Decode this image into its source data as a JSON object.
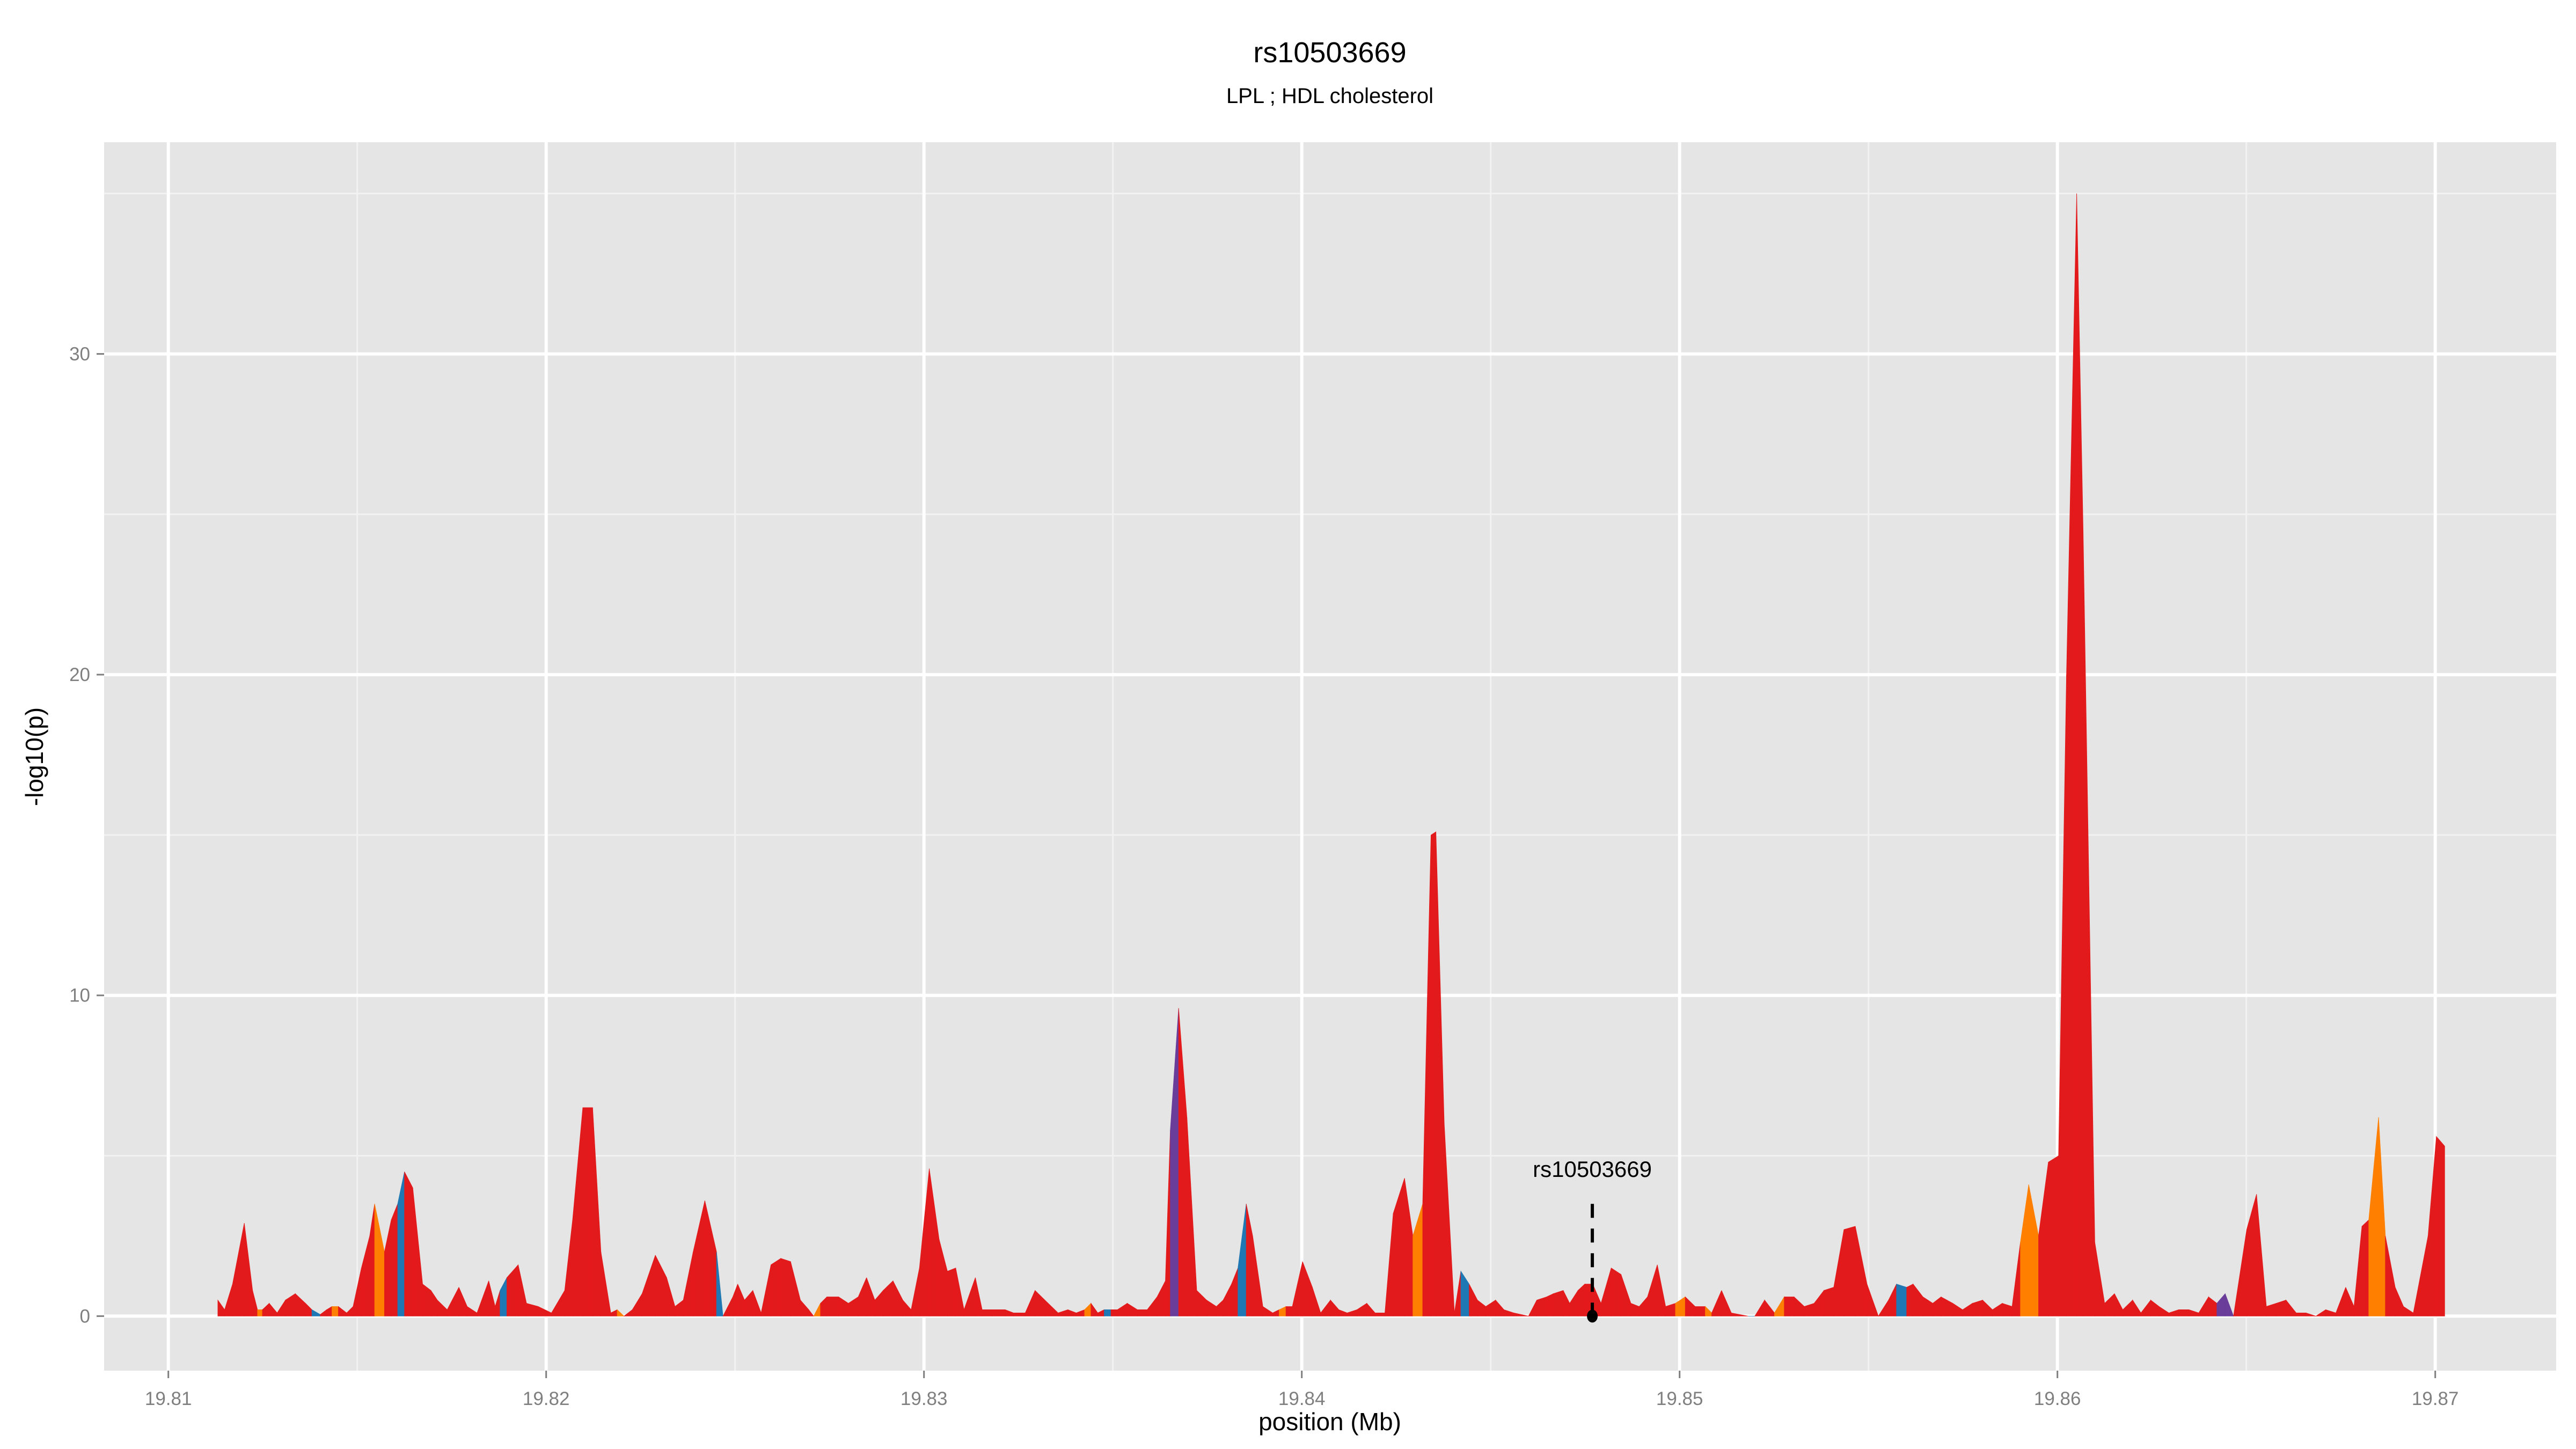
{
  "chart_data": {
    "type": "area",
    "title": "rs10503669",
    "subtitle": "LPL ; HDL cholesterol",
    "xlabel": "position (Mb)",
    "ylabel": "-log10(p)",
    "xlim": [
      19.8083,
      19.8732
    ],
    "ylim": [
      -1.7,
      36.6
    ],
    "x_ticks": [
      19.81,
      19.82,
      19.83,
      19.84,
      19.85,
      19.86,
      19.87
    ],
    "x_tick_labels": [
      "19.81",
      "19.82",
      "19.83",
      "19.84",
      "19.85",
      "19.86",
      "19.87"
    ],
    "y_ticks": [
      0,
      10,
      20,
      30
    ],
    "y_tick_labels": [
      "0",
      "10",
      "20",
      "30"
    ],
    "grid": true,
    "legend": "none",
    "colors": {
      "r": "#E31A1C",
      "o": "#FF7F00",
      "b": "#1F78B4",
      "p": "#6A3D9A"
    },
    "highlight": {
      "label": "rs10503669",
      "x": 19.84769,
      "y": 0,
      "line_top": 3.5
    },
    "points": [
      [
        19.81131,
        0.5,
        "r"
      ],
      [
        19.81149,
        0.2,
        "r"
      ],
      [
        19.8117,
        1.0,
        "r"
      ],
      [
        19.81201,
        2.9,
        "r"
      ],
      [
        19.81223,
        0.8,
        "r"
      ],
      [
        19.81236,
        0.2,
        "o"
      ],
      [
        19.81249,
        0.2,
        "r"
      ],
      [
        19.81267,
        0.4,
        "r"
      ],
      [
        19.81288,
        0.1,
        "r"
      ],
      [
        19.8131,
        0.5,
        "r"
      ],
      [
        19.81336,
        0.7,
        "r"
      ],
      [
        19.81363,
        0.4,
        "r"
      ],
      [
        19.8138,
        0.2,
        "b"
      ],
      [
        19.81402,
        0.05,
        "r"
      ],
      [
        19.81419,
        0.2,
        "r"
      ],
      [
        19.81433,
        0.3,
        "o"
      ],
      [
        19.8145,
        0.3,
        "r"
      ],
      [
        19.81472,
        0.1,
        "r"
      ],
      [
        19.81489,
        0.3,
        "r"
      ],
      [
        19.81511,
        1.5,
        "r"
      ],
      [
        19.81533,
        2.5,
        "r"
      ],
      [
        19.81546,
        3.5,
        "o"
      ],
      [
        19.81572,
        2.0,
        "r"
      ],
      [
        19.8159,
        3.0,
        "r"
      ],
      [
        19.81607,
        3.5,
        "b"
      ],
      [
        19.81625,
        4.5,
        "r"
      ],
      [
        19.81647,
        4.0,
        "r"
      ],
      [
        19.81673,
        1.0,
        "r"
      ],
      [
        19.81695,
        0.8,
        "r"
      ],
      [
        19.81712,
        0.5,
        "r"
      ],
      [
        19.81738,
        0.2,
        "r"
      ],
      [
        19.81769,
        0.9,
        "r"
      ],
      [
        19.81791,
        0.3,
        "r"
      ],
      [
        19.81817,
        0.1,
        "r"
      ],
      [
        19.81848,
        1.1,
        "r"
      ],
      [
        19.81865,
        0.3,
        "r"
      ],
      [
        19.81878,
        0.8,
        "b"
      ],
      [
        19.81896,
        1.2,
        "r"
      ],
      [
        19.81926,
        1.6,
        "r"
      ],
      [
        19.81948,
        0.4,
        "r"
      ],
      [
        19.81979,
        0.3,
        "r"
      ],
      [
        19.82014,
        0.1,
        "r"
      ],
      [
        19.82049,
        0.8,
        "r"
      ],
      [
        19.8207,
        3.0,
        "r"
      ],
      [
        19.82097,
        6.5,
        "r"
      ],
      [
        19.82123,
        6.5,
        "r"
      ],
      [
        19.82145,
        2.0,
        "r"
      ],
      [
        19.82171,
        0.1,
        "r"
      ],
      [
        19.82188,
        0.2,
        "o"
      ],
      [
        19.82206,
        0.0,
        "r"
      ],
      [
        19.82228,
        0.2,
        "r"
      ],
      [
        19.82254,
        0.7,
        "r"
      ],
      [
        19.82289,
        1.9,
        "r"
      ],
      [
        19.82319,
        1.2,
        "r"
      ],
      [
        19.82341,
        0.3,
        "r"
      ],
      [
        19.82363,
        0.5,
        "r"
      ],
      [
        19.82389,
        2.0,
        "r"
      ],
      [
        19.8242,
        3.6,
        "r"
      ],
      [
        19.82451,
        2.0,
        "b"
      ],
      [
        19.82468,
        0.0,
        "r"
      ],
      [
        19.82494,
        0.6,
        "r"
      ],
      [
        19.82507,
        1.0,
        "r"
      ],
      [
        19.82525,
        0.5,
        "r"
      ],
      [
        19.82547,
        0.8,
        "r"
      ],
      [
        19.82569,
        0.1,
        "r"
      ],
      [
        19.82595,
        1.6,
        "r"
      ],
      [
        19.82621,
        1.8,
        "r"
      ],
      [
        19.82647,
        1.7,
        "r"
      ],
      [
        19.82673,
        0.5,
        "r"
      ],
      [
        19.82695,
        0.2,
        "r"
      ],
      [
        19.82708,
        0.0,
        "o"
      ],
      [
        19.82726,
        0.4,
        "r"
      ],
      [
        19.82743,
        0.6,
        "r"
      ],
      [
        19.82774,
        0.6,
        "r"
      ],
      [
        19.828,
        0.4,
        "r"
      ],
      [
        19.82826,
        0.6,
        "r"
      ],
      [
        19.82848,
        1.2,
        "r"
      ],
      [
        19.8287,
        0.5,
        "r"
      ],
      [
        19.82892,
        0.8,
        "r"
      ],
      [
        19.82918,
        1.1,
        "r"
      ],
      [
        19.82944,
        0.5,
        "r"
      ],
      [
        19.82966,
        0.2,
        "r"
      ],
      [
        19.82988,
        1.5,
        "r"
      ],
      [
        19.83014,
        4.6,
        "r"
      ],
      [
        19.8304,
        2.4,
        "r"
      ],
      [
        19.83062,
        1.4,
        "r"
      ],
      [
        19.83084,
        1.5,
        "r"
      ],
      [
        19.83106,
        0.2,
        "r"
      ],
      [
        19.83136,
        1.2,
        "r"
      ],
      [
        19.83154,
        0.2,
        "r"
      ],
      [
        19.8318,
        0.2,
        "r"
      ],
      [
        19.83215,
        0.2,
        "r"
      ],
      [
        19.83237,
        0.1,
        "r"
      ],
      [
        19.83268,
        0.1,
        "r"
      ],
      [
        19.83294,
        0.8,
        "r"
      ],
      [
        19.8332,
        0.5,
        "r"
      ],
      [
        19.83355,
        0.1,
        "r"
      ],
      [
        19.83381,
        0.2,
        "r"
      ],
      [
        19.83403,
        0.1,
        "r"
      ],
      [
        19.83425,
        0.2,
        "o"
      ],
      [
        19.83442,
        0.4,
        "r"
      ],
      [
        19.8346,
        0.1,
        "r"
      ],
      [
        19.83477,
        0.2,
        "b"
      ],
      [
        19.83495,
        0.2,
        "r"
      ],
      [
        19.83512,
        0.2,
        "r"
      ],
      [
        19.83538,
        0.4,
        "r"
      ],
      [
        19.83565,
        0.2,
        "r"
      ],
      [
        19.83591,
        0.2,
        "r"
      ],
      [
        19.83617,
        0.6,
        "r"
      ],
      [
        19.83639,
        1.1,
        "r"
      ],
      [
        19.83652,
        5.8,
        "p"
      ],
      [
        19.83674,
        9.6,
        "r"
      ],
      [
        19.83696,
        6.2,
        "r"
      ],
      [
        19.83722,
        0.8,
        "r"
      ],
      [
        19.83748,
        0.5,
        "r"
      ],
      [
        19.83774,
        0.3,
        "r"
      ],
      [
        19.83792,
        0.5,
        "r"
      ],
      [
        19.83814,
        1.0,
        "r"
      ],
      [
        19.83831,
        1.5,
        "b"
      ],
      [
        19.83853,
        3.5,
        "r"
      ],
      [
        19.8387,
        2.5,
        "r"
      ],
      [
        19.83897,
        0.3,
        "r"
      ],
      [
        19.83923,
        0.1,
        "r"
      ],
      [
        19.8394,
        0.2,
        "o"
      ],
      [
        19.83958,
        0.3,
        "r"
      ],
      [
        19.83975,
        0.3,
        "r"
      ],
      [
        19.84002,
        1.7,
        "r"
      ],
      [
        19.84028,
        0.9,
        "r"
      ],
      [
        19.8405,
        0.1,
        "r"
      ],
      [
        19.84076,
        0.5,
        "r"
      ],
      [
        19.84098,
        0.2,
        "r"
      ],
      [
        19.8412,
        0.1,
        "r"
      ],
      [
        19.84146,
        0.2,
        "r"
      ],
      [
        19.84172,
        0.4,
        "r"
      ],
      [
        19.84194,
        0.1,
        "r"
      ],
      [
        19.8422,
        0.1,
        "r"
      ],
      [
        19.84242,
        3.2,
        "r"
      ],
      [
        19.84272,
        4.3,
        "r"
      ],
      [
        19.84294,
        2.5,
        "o"
      ],
      [
        19.8432,
        3.5,
        "r"
      ],
      [
        19.84342,
        15.0,
        "r"
      ],
      [
        19.84355,
        15.1,
        "r"
      ],
      [
        19.84377,
        6.0,
        "r"
      ],
      [
        19.84404,
        0.1,
        "r"
      ],
      [
        19.84421,
        1.4,
        "b"
      ],
      [
        19.84443,
        1.0,
        "r"
      ],
      [
        19.84465,
        0.5,
        "r"
      ],
      [
        19.84487,
        0.3,
        "r"
      ],
      [
        19.84513,
        0.5,
        "r"
      ],
      [
        19.84535,
        0.2,
        "r"
      ],
      [
        19.84561,
        0.1,
        "r"
      ],
      [
        19.846,
        0.0,
        "r"
      ],
      [
        19.84622,
        0.5,
        "r"
      ],
      [
        19.84648,
        0.6,
        "r"
      ],
      [
        19.84666,
        0.7,
        "r"
      ],
      [
        19.84692,
        0.8,
        "r"
      ],
      [
        19.84709,
        0.4,
        "r"
      ],
      [
        19.84731,
        0.8,
        "r"
      ],
      [
        19.84749,
        1.0,
        "r"
      ],
      [
        19.8477,
        1.0,
        "r"
      ],
      [
        19.84792,
        0.4,
        "r"
      ],
      [
        19.84819,
        1.5,
        "r"
      ],
      [
        19.84845,
        1.3,
        "r"
      ],
      [
        19.84871,
        0.4,
        "r"
      ],
      [
        19.84893,
        0.3,
        "r"
      ],
      [
        19.84915,
        0.6,
        "r"
      ],
      [
        19.84941,
        1.6,
        "r"
      ],
      [
        19.84963,
        0.3,
        "r"
      ],
      [
        19.84989,
        0.4,
        "o"
      ],
      [
        19.85015,
        0.6,
        "r"
      ],
      [
        19.85041,
        0.3,
        "r"
      ],
      [
        19.85068,
        0.3,
        "o"
      ],
      [
        19.85085,
        0.1,
        "r"
      ],
      [
        19.85111,
        0.8,
        "r"
      ],
      [
        19.85137,
        0.1,
        "r"
      ],
      [
        19.85181,
        0.0,
        "b"
      ],
      [
        19.85199,
        0.0,
        "r"
      ],
      [
        19.85225,
        0.5,
        "r"
      ],
      [
        19.85251,
        0.1,
        "o"
      ],
      [
        19.85277,
        0.6,
        "r"
      ],
      [
        19.85303,
        0.6,
        "r"
      ],
      [
        19.8533,
        0.3,
        "r"
      ],
      [
        19.85356,
        0.4,
        "r"
      ],
      [
        19.85382,
        0.8,
        "r"
      ],
      [
        19.85408,
        0.9,
        "r"
      ],
      [
        19.85435,
        2.7,
        "r"
      ],
      [
        19.85465,
        2.8,
        "r"
      ],
      [
        19.85496,
        1.0,
        "r"
      ],
      [
        19.85526,
        0.0,
        "r"
      ],
      [
        19.85553,
        0.5,
        "r"
      ],
      [
        19.85574,
        1.0,
        "b"
      ],
      [
        19.85601,
        0.9,
        "r"
      ],
      [
        19.85618,
        1.0,
        "r"
      ],
      [
        19.85644,
        0.6,
        "r"
      ],
      [
        19.8567,
        0.4,
        "r"
      ],
      [
        19.85692,
        0.6,
        "r"
      ],
      [
        19.85723,
        0.4,
        "r"
      ],
      [
        19.85749,
        0.2,
        "r"
      ],
      [
        19.85775,
        0.4,
        "r"
      ],
      [
        19.85802,
        0.5,
        "r"
      ],
      [
        19.85828,
        0.2,
        "r"
      ],
      [
        19.85854,
        0.4,
        "r"
      ],
      [
        19.8588,
        0.3,
        "r"
      ],
      [
        19.85902,
        2.3,
        "o"
      ],
      [
        19.85924,
        4.1,
        "o"
      ],
      [
        19.8595,
        2.5,
        "r"
      ],
      [
        19.85976,
        4.8,
        "r"
      ],
      [
        19.86003,
        5.0,
        "r"
      ],
      [
        19.86024,
        20.0,
        "r"
      ],
      [
        19.86051,
        35.0,
        "r"
      ],
      [
        19.86068,
        24.5,
        "r"
      ],
      [
        19.86099,
        2.3,
        "r"
      ],
      [
        19.86125,
        0.4,
        "r"
      ],
      [
        19.86151,
        0.7,
        "r"
      ],
      [
        19.86173,
        0.2,
        "r"
      ],
      [
        19.86199,
        0.5,
        "r"
      ],
      [
        19.86221,
        0.1,
        "r"
      ],
      [
        19.86247,
        0.5,
        "r"
      ],
      [
        19.86269,
        0.3,
        "r"
      ],
      [
        19.86295,
        0.1,
        "r"
      ],
      [
        19.86321,
        0.2,
        "r"
      ],
      [
        19.86348,
        0.2,
        "r"
      ],
      [
        19.86374,
        0.1,
        "r"
      ],
      [
        19.864,
        0.6,
        "r"
      ],
      [
        19.86422,
        0.4,
        "p"
      ],
      [
        19.86444,
        0.7,
        "p"
      ],
      [
        19.86466,
        0.0,
        "r"
      ],
      [
        19.86501,
        2.7,
        "r"
      ],
      [
        19.86527,
        3.8,
        "r"
      ],
      [
        19.86553,
        0.3,
        "r"
      ],
      [
        19.86579,
        0.4,
        "r"
      ],
      [
        19.86605,
        0.5,
        "r"
      ],
      [
        19.86632,
        0.1,
        "r"
      ],
      [
        19.86658,
        0.1,
        "r"
      ],
      [
        19.86684,
        0.0,
        "r"
      ],
      [
        19.8671,
        0.2,
        "r"
      ],
      [
        19.86737,
        0.1,
        "r"
      ],
      [
        19.86763,
        0.9,
        "r"
      ],
      [
        19.86785,
        0.3,
        "r"
      ],
      [
        19.86806,
        2.8,
        "r"
      ],
      [
        19.86824,
        3.0,
        "o"
      ],
      [
        19.8685,
        6.2,
        "o"
      ],
      [
        19.86868,
        2.5,
        "r"
      ],
      [
        19.86894,
        0.9,
        "r"
      ],
      [
        19.86916,
        0.3,
        "r"
      ],
      [
        19.86942,
        0.1,
        "r"
      ],
      [
        19.86981,
        2.5,
        "r"
      ],
      [
        19.87003,
        5.6,
        "r"
      ],
      [
        19.87025,
        5.3,
        "r"
      ]
    ]
  }
}
